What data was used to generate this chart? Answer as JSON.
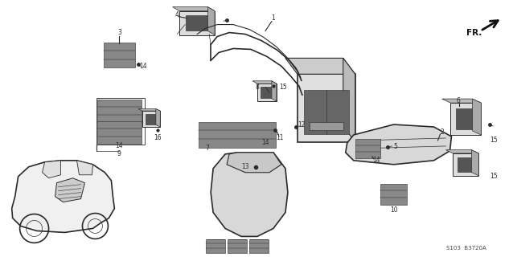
{
  "fig_width": 6.38,
  "fig_height": 3.2,
  "dpi": 100,
  "bg": "#ffffff",
  "lc": "#2a2a2a",
  "lc_light": "#666666",
  "lw": 0.8,
  "lw_thin": 0.5,
  "lw_thick": 1.2,
  "label_fs": 5.5,
  "label_color": "#111111",
  "fr_text": "FR.",
  "part_code": "S103  B3720A",
  "xlim": [
    0,
    638
  ],
  "ylim": [
    0,
    320
  ]
}
